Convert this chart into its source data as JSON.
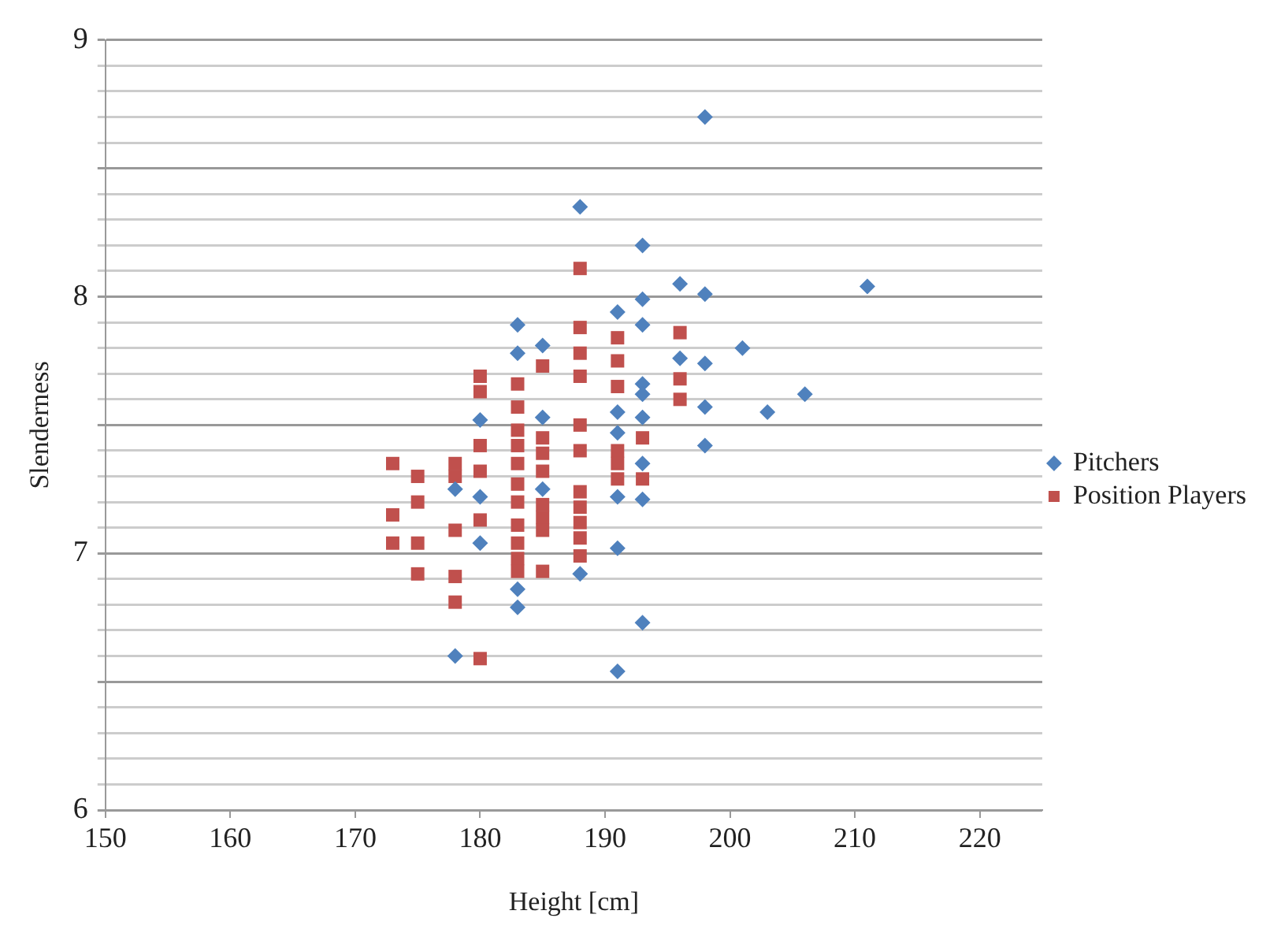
{
  "chart_data": {
    "type": "scatter",
    "xlabel": "Height [cm]",
    "ylabel": "Slenderness",
    "xlim": [
      150,
      225
    ],
    "xticks": [
      150,
      160,
      170,
      180,
      190,
      200,
      210,
      220
    ],
    "ylim": [
      6,
      9
    ],
    "yticks": [
      6,
      {
        "value": 6.1,
        "label": null
      },
      {
        "value": 6.2,
        "label": null
      },
      {
        "value": 6.3,
        "label": null
      },
      {
        "value": 6.4,
        "label": null
      },
      {
        "value": 6.5,
        "label": null
      },
      {
        "value": 6.6,
        "label": null
      },
      {
        "value": 6.7,
        "label": null
      },
      {
        "value": 6.8,
        "label": null
      },
      {
        "value": 6.9,
        "label": null
      },
      7,
      {
        "value": 7.1,
        "label": null
      },
      {
        "value": 7.2,
        "label": null
      },
      {
        "value": 7.3,
        "label": null
      },
      {
        "value": 7.4,
        "label": null
      },
      {
        "value": 7.5,
        "label": null
      },
      {
        "value": 7.6,
        "label": null
      },
      {
        "value": 7.7,
        "label": null
      },
      {
        "value": 7.8,
        "label": null
      },
      {
        "value": 7.9,
        "label": null
      },
      8,
      {
        "value": 8.1,
        "label": null
      },
      {
        "value": 8.2,
        "label": null
      },
      {
        "value": 8.3,
        "label": null
      },
      {
        "value": 8.4,
        "label": null
      },
      {
        "value": 8.5,
        "label": null
      },
      {
        "value": 8.6,
        "label": null
      },
      {
        "value": 8.7,
        "label": null
      },
      {
        "value": 8.8,
        "label": null
      },
      {
        "value": 8.9,
        "label": null
      },
      9
    ],
    "grid": "y",
    "legend": "right",
    "series": [
      {
        "name": "Pitchers",
        "color": "#4f81bd",
        "marker": "diamond",
        "x": [
          198,
          188,
          193,
          196,
          198,
          211,
          193,
          191,
          183,
          193,
          201,
          183,
          185,
          196,
          198,
          193,
          193,
          206,
          198,
          203,
          180,
          185,
          191,
          193,
          191,
          198,
          193,
          178,
          185,
          180,
          191,
          193,
          180,
          191,
          188,
          183,
          183,
          193,
          178,
          191
        ],
        "values": [
          8.7,
          8.35,
          8.2,
          8.05,
          8.01,
          8.04,
          7.99,
          7.94,
          7.89,
          7.89,
          7.8,
          7.78,
          7.81,
          7.76,
          7.74,
          7.66,
          7.62,
          7.62,
          7.57,
          7.55,
          7.52,
          7.53,
          7.55,
          7.53,
          7.47,
          7.42,
          7.35,
          7.25,
          7.25,
          7.22,
          7.22,
          7.21,
          7.04,
          7.02,
          6.92,
          6.86,
          6.79,
          6.73,
          6.6,
          6.54
        ]
      },
      {
        "name": "Position Players",
        "color": "#c0504d",
        "marker": "square",
        "x": [
          188,
          188,
          191,
          196,
          188,
          191,
          185,
          180,
          180,
          183,
          188,
          191,
          196,
          196,
          183,
          183,
          183,
          183,
          183,
          183,
          183,
          183,
          183,
          183,
          180,
          180,
          180,
          185,
          185,
          185,
          185,
          185,
          185,
          185,
          188,
          188,
          188,
          188,
          188,
          188,
          188,
          191,
          191,
          191,
          193,
          193,
          173,
          173,
          173,
          175,
          175,
          175,
          175,
          178,
          178,
          178,
          178,
          178,
          180
        ],
        "values": [
          8.11,
          7.88,
          7.84,
          7.86,
          7.78,
          7.75,
          7.73,
          7.69,
          7.63,
          7.66,
          7.69,
          7.65,
          7.68,
          7.6,
          7.57,
          7.48,
          7.42,
          7.35,
          7.27,
          7.2,
          7.11,
          7.04,
          6.98,
          6.93,
          7.42,
          7.32,
          7.13,
          7.45,
          7.39,
          7.32,
          7.19,
          7.14,
          7.09,
          6.93,
          7.5,
          7.4,
          7.24,
          7.18,
          7.12,
          7.06,
          6.99,
          7.4,
          7.35,
          7.29,
          7.45,
          7.29,
          7.35,
          7.15,
          7.04,
          7.3,
          7.2,
          7.04,
          6.92,
          7.35,
          7.3,
          7.09,
          6.91,
          6.81,
          6.59
        ]
      }
    ]
  }
}
